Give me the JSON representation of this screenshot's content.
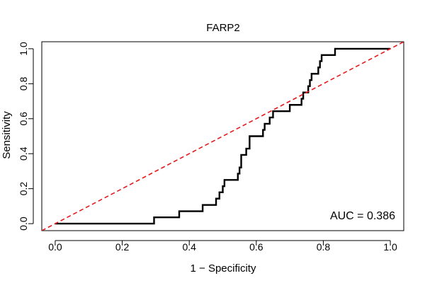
{
  "chart_data": {
    "type": "line",
    "title": "FARP2",
    "xlabel": "1 − Specificity",
    "ylabel": "Sensitivity",
    "xlim": [
      -0.04,
      1.04
    ],
    "ylim": [
      -0.04,
      1.04
    ],
    "x_ticks": [
      0.0,
      0.2,
      0.4,
      0.6,
      0.8,
      1.0
    ],
    "x_tick_labels": [
      "0.0",
      "0.2",
      "0.4",
      "0.6",
      "0.8",
      "1.0"
    ],
    "y_ticks": [
      0.0,
      0.2,
      0.4,
      0.6,
      0.8,
      1.0
    ],
    "y_tick_labels": [
      "0.0",
      "0.2",
      "0.4",
      "0.6",
      "0.8",
      "1.0"
    ],
    "grid": false,
    "annotation": "AUC = 0.386",
    "colors": {
      "roc": "#000000",
      "diagonal": "#e31a1c"
    },
    "series": [
      {
        "style": "solid",
        "points": [
          [
            0.0,
            0.0
          ],
          [
            0.295,
            0.0
          ],
          [
            0.295,
            0.036
          ],
          [
            0.37,
            0.036
          ],
          [
            0.37,
            0.071
          ],
          [
            0.44,
            0.071
          ],
          [
            0.44,
            0.107
          ],
          [
            0.48,
            0.107
          ],
          [
            0.48,
            0.143
          ],
          [
            0.49,
            0.143
          ],
          [
            0.49,
            0.179
          ],
          [
            0.5,
            0.179
          ],
          [
            0.5,
            0.214
          ],
          [
            0.505,
            0.214
          ],
          [
            0.505,
            0.25
          ],
          [
            0.545,
            0.25
          ],
          [
            0.545,
            0.286
          ],
          [
            0.55,
            0.286
          ],
          [
            0.55,
            0.321
          ],
          [
            0.555,
            0.321
          ],
          [
            0.555,
            0.393
          ],
          [
            0.57,
            0.393
          ],
          [
            0.57,
            0.429
          ],
          [
            0.58,
            0.429
          ],
          [
            0.58,
            0.5
          ],
          [
            0.62,
            0.5
          ],
          [
            0.62,
            0.536
          ],
          [
            0.625,
            0.536
          ],
          [
            0.625,
            0.571
          ],
          [
            0.64,
            0.571
          ],
          [
            0.64,
            0.607
          ],
          [
            0.65,
            0.607
          ],
          [
            0.65,
            0.643
          ],
          [
            0.7,
            0.643
          ],
          [
            0.7,
            0.679
          ],
          [
            0.735,
            0.679
          ],
          [
            0.735,
            0.714
          ],
          [
            0.74,
            0.714
          ],
          [
            0.74,
            0.75
          ],
          [
            0.755,
            0.75
          ],
          [
            0.755,
            0.786
          ],
          [
            0.76,
            0.786
          ],
          [
            0.76,
            0.821
          ],
          [
            0.765,
            0.821
          ],
          [
            0.765,
            0.857
          ],
          [
            0.785,
            0.857
          ],
          [
            0.785,
            0.893
          ],
          [
            0.79,
            0.893
          ],
          [
            0.79,
            0.929
          ],
          [
            0.795,
            0.929
          ],
          [
            0.795,
            0.964
          ],
          [
            0.835,
            0.964
          ],
          [
            0.835,
            1.0
          ],
          [
            1.0,
            1.0
          ]
        ]
      },
      {
        "style": "dashed",
        "points": [
          [
            -0.04,
            -0.04
          ],
          [
            1.04,
            1.04
          ]
        ]
      }
    ]
  }
}
